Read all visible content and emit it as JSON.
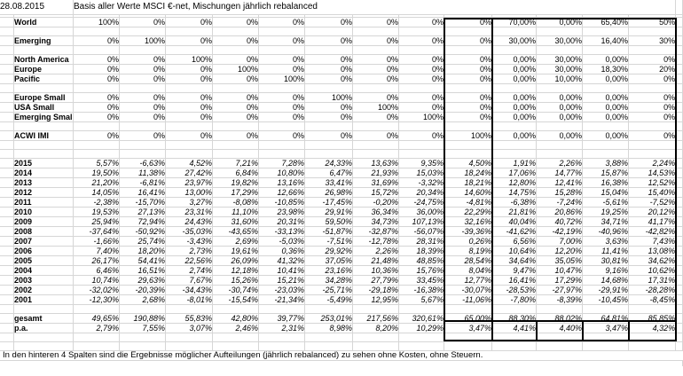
{
  "header": {
    "date": "28.08.2015",
    "title": "Basis aller Werte MSCI €-net, Mischungen jährlich rebalanced"
  },
  "footer": {
    "note": "In den hinteren 4 Spalten sind die Ergebnisse möglicher Aufteilungen (jährlich rebalanced) zu sehen ohne Kosten, ohne Steuern."
  },
  "style": {
    "grid_color": "#d6d6d6",
    "highlight_border_color": "#000000",
    "text_color": "#000000",
    "background_color": "#ffffff"
  },
  "columns": [
    "world",
    "emerging",
    "north-america",
    "europe",
    "pacific",
    "europe-small",
    "usa-small",
    "emerging-small",
    "acwi-imi",
    "mix-1",
    "mix-2",
    "mix-3",
    "mix-4"
  ],
  "table": {
    "grid_rows": [
      {
        "type": "blank_s"
      },
      {
        "type": "alloc",
        "label": "World",
        "values": [
          "100%",
          "0%",
          "0%",
          "0%",
          "0%",
          "0%",
          "0%",
          "0%",
          "0%",
          "70,00%",
          "0,00%",
          "65,40%",
          "50%"
        ]
      },
      {
        "type": "blank"
      },
      {
        "type": "alloc",
        "label": "Emerging",
        "values": [
          "0%",
          "100%",
          "0%",
          "0%",
          "0%",
          "0%",
          "0%",
          "0%",
          "0%",
          "30,00%",
          "30,00%",
          "16,40%",
          "30%"
        ]
      },
      {
        "type": "blank"
      },
      {
        "type": "alloc",
        "label": "North America",
        "values": [
          "0%",
          "0%",
          "100%",
          "0%",
          "0%",
          "0%",
          "0%",
          "0%",
          "0%",
          "0,00%",
          "30,00%",
          "0,00%",
          "0%"
        ]
      },
      {
        "type": "alloc",
        "label": "Europe",
        "values": [
          "0%",
          "0%",
          "0%",
          "100%",
          "0%",
          "0%",
          "0%",
          "0%",
          "0%",
          "0,00%",
          "30,00%",
          "18,30%",
          "20%"
        ]
      },
      {
        "type": "alloc",
        "label": "Pacific",
        "values": [
          "0%",
          "0%",
          "0%",
          "0%",
          "100%",
          "0%",
          "0%",
          "0%",
          "0%",
          "0,00%",
          "10,00%",
          "0,00%",
          "0%"
        ]
      },
      {
        "type": "blank"
      },
      {
        "type": "alloc",
        "label": "Europe Small",
        "values": [
          "0%",
          "0%",
          "0%",
          "0%",
          "0%",
          "100%",
          "0%",
          "0%",
          "0%",
          "0,00%",
          "0,00%",
          "0,00%",
          "0%"
        ]
      },
      {
        "type": "alloc",
        "label": "USA Small",
        "values": [
          "0%",
          "0%",
          "0%",
          "0%",
          "0%",
          "0%",
          "100%",
          "0%",
          "0%",
          "0,00%",
          "0,00%",
          "0,00%",
          "0%"
        ]
      },
      {
        "type": "alloc",
        "label": "Emerging Small",
        "values": [
          "0%",
          "0%",
          "0%",
          "0%",
          "0%",
          "0%",
          "0%",
          "100%",
          "0%",
          "0,00%",
          "0,00%",
          "0,00%",
          "0%"
        ]
      },
      {
        "type": "blank"
      },
      {
        "type": "alloc",
        "label": "ACWI IMI",
        "values": [
          "0%",
          "0%",
          "0%",
          "0%",
          "0%",
          "0%",
          "0%",
          "0%",
          "100%",
          "0,00%",
          "0,00%",
          "0,00%",
          "0%"
        ]
      },
      {
        "type": "blank"
      },
      {
        "type": "blank"
      },
      {
        "type": "year",
        "label": "2015",
        "values": [
          "5,57%",
          "-6,63%",
          "4,52%",
          "7,21%",
          "7,28%",
          "24,33%",
          "13,63%",
          "9,35%",
          "4,50%",
          "1,91%",
          "2,26%",
          "3,88%",
          "2,24%"
        ]
      },
      {
        "type": "year",
        "label": "2014",
        "values": [
          "19,50%",
          "11,38%",
          "27,42%",
          "6,84%",
          "10,80%",
          "6,47%",
          "21,93%",
          "15,03%",
          "18,24%",
          "17,06%",
          "14,77%",
          "15,87%",
          "14,53%"
        ]
      },
      {
        "type": "year",
        "label": "2013",
        "values": [
          "21,20%",
          "-6,81%",
          "23,97%",
          "19,82%",
          "13,16%",
          "33,41%",
          "31,69%",
          "-3,32%",
          "18,21%",
          "12,80%",
          "12,41%",
          "16,38%",
          "12,52%"
        ]
      },
      {
        "type": "year",
        "label": "2012",
        "values": [
          "14,05%",
          "16,41%",
          "13,00%",
          "17,29%",
          "12,66%",
          "26,98%",
          "15,72%",
          "20,34%",
          "14,60%",
          "14,75%",
          "15,28%",
          "15,04%",
          "15,40%"
        ]
      },
      {
        "type": "year",
        "label": "2011",
        "values": [
          "-2,38%",
          "-15,70%",
          "3,27%",
          "-8,08%",
          "-10,85%",
          "-17,45%",
          "-0,20%",
          "-24,75%",
          "-4,81%",
          "-6,38%",
          "-7,24%",
          "-5,61%",
          "-7,52%"
        ]
      },
      {
        "type": "year",
        "label": "2010",
        "values": [
          "19,53%",
          "27,13%",
          "23,31%",
          "11,10%",
          "23,98%",
          "29,91%",
          "36,34%",
          "36,00%",
          "22,29%",
          "21,81%",
          "20,86%",
          "19,25%",
          "20,12%"
        ]
      },
      {
        "type": "year",
        "label": "2009",
        "values": [
          "25,94%",
          "72,94%",
          "24,43%",
          "31,60%",
          "20,31%",
          "59,50%",
          "34,73%",
          "107,13%",
          "32,16%",
          "40,04%",
          "40,72%",
          "34,71%",
          "41,17%"
        ]
      },
      {
        "type": "year",
        "label": "2008",
        "values": [
          "-37,64%",
          "-50,92%",
          "-35,03%",
          "-43,65%",
          "-33,13%",
          "-51,87%",
          "-32,87%",
          "-56,07%",
          "-39,36%",
          "-41,62%",
          "-42,19%",
          "-40,96%",
          "-42,82%"
        ]
      },
      {
        "type": "year",
        "label": "2007",
        "values": [
          "-1,66%",
          "25,74%",
          "-3,43%",
          "2,69%",
          "-5,03%",
          "-7,51%",
          "-12,78%",
          "28,31%",
          "0,26%",
          "6,56%",
          "7,00%",
          "3,63%",
          "7,43%"
        ]
      },
      {
        "type": "year",
        "label": "2006",
        "values": [
          "7,40%",
          "18,20%",
          "2,73%",
          "19,61%",
          "0,36%",
          "29,92%",
          "2,26%",
          "18,39%",
          "8,19%",
          "10,64%",
          "12,20%",
          "11,41%",
          "13,08%"
        ]
      },
      {
        "type": "year",
        "label": "2005",
        "values": [
          "26,17%",
          "54,41%",
          "22,56%",
          "26,09%",
          "41,32%",
          "37,05%",
          "21,48%",
          "48,85%",
          "28,54%",
          "34,64%",
          "35,05%",
          "30,81%",
          "34,62%"
        ]
      },
      {
        "type": "year",
        "label": "2004",
        "values": [
          "6,46%",
          "16,51%",
          "2,74%",
          "12,18%",
          "10,41%",
          "23,16%",
          "10,36%",
          "15,76%",
          "8,04%",
          "9,47%",
          "10,47%",
          "9,16%",
          "10,62%"
        ]
      },
      {
        "type": "year",
        "label": "2003",
        "values": [
          "10,74%",
          "29,63%",
          "7,67%",
          "15,26%",
          "15,21%",
          "34,28%",
          "27,79%",
          "33,45%",
          "12,77%",
          "16,41%",
          "17,29%",
          "14,68%",
          "17,31%"
        ]
      },
      {
        "type": "year",
        "label": "2002",
        "values": [
          "-32,02%",
          "-20,39%",
          "-34,43%",
          "-30,74%",
          "-23,03%",
          "-25,71%",
          "-29,18%",
          "-16,38%",
          "-30,07%",
          "-28,53%",
          "-27,97%",
          "-29,91%",
          "-28,28%"
        ]
      },
      {
        "type": "year",
        "label": "2001",
        "values": [
          "-12,30%",
          "2,68%",
          "-8,01%",
          "-15,54%",
          "-21,34%",
          "-5,49%",
          "12,95%",
          "5,67%",
          "-11,06%",
          "-7,80%",
          "-8,39%",
          "-10,45%",
          "-8,45%"
        ]
      },
      {
        "type": "blank"
      },
      {
        "type": "summary",
        "label": "gesamt",
        "values": [
          "49,65%",
          "190,88%",
          "55,83%",
          "42,80%",
          "39,77%",
          "253,01%",
          "217,56%",
          "320,61%",
          "65,00%",
          "88,30%",
          "88,02%",
          "64,81%",
          "85,85%"
        ]
      },
      {
        "type": "summary",
        "label": "p.a.",
        "values": [
          "2,79%",
          "7,55%",
          "3,07%",
          "2,46%",
          "2,31%",
          "8,98%",
          "8,20%",
          "10,29%",
          "3,47%",
          "4,41%",
          "4,40%",
          "3,47%",
          "4,32%"
        ]
      },
      {
        "type": "blank"
      },
      {
        "type": "blank"
      }
    ]
  }
}
